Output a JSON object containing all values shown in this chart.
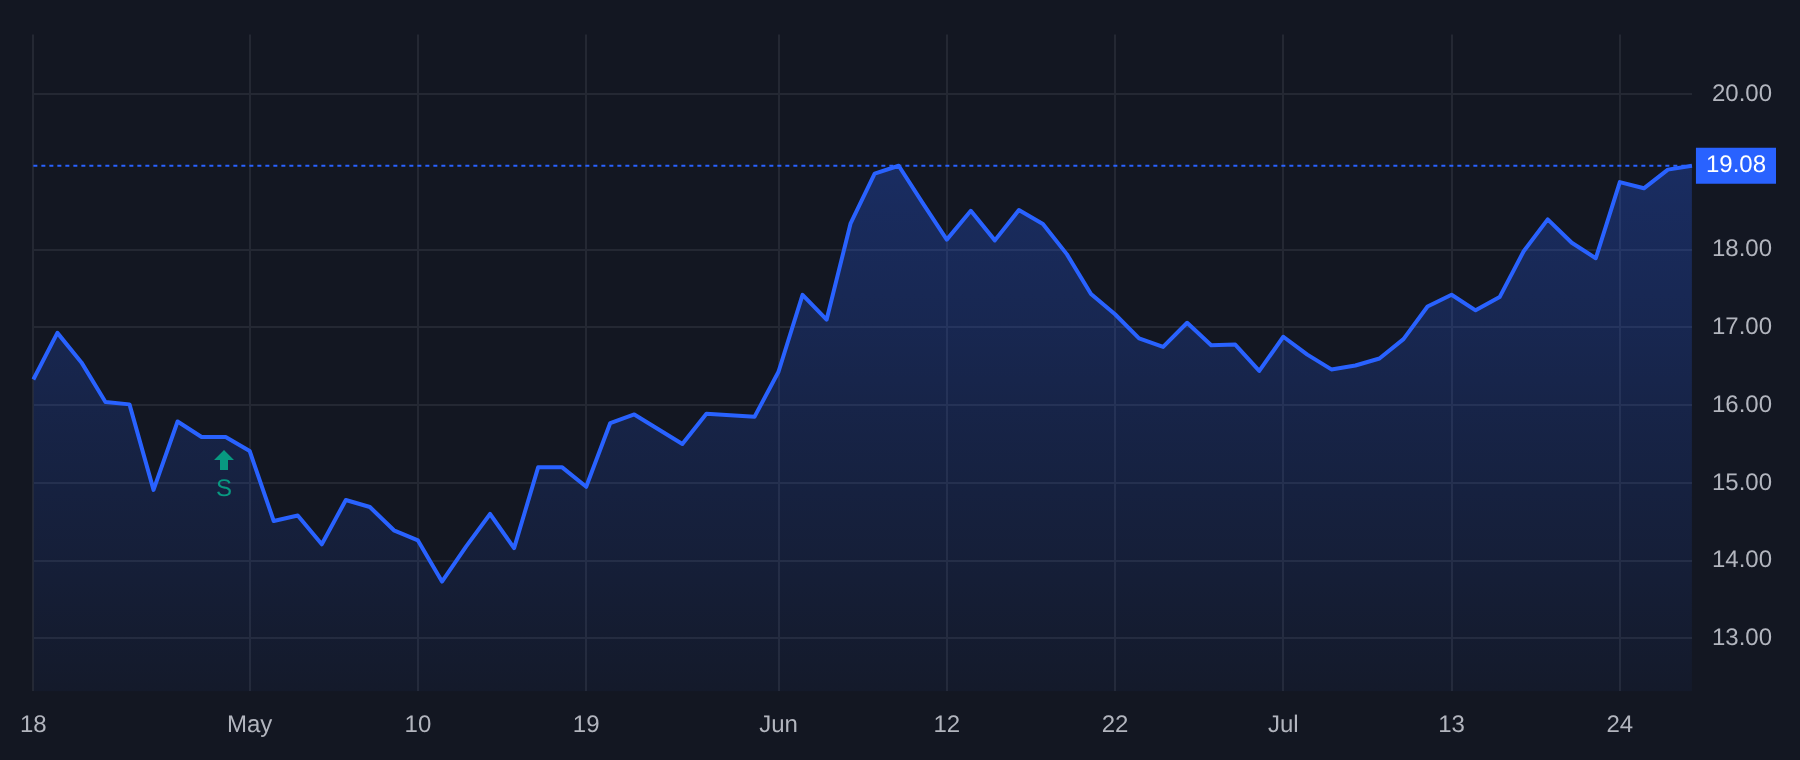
{
  "chart_data": {
    "type": "area",
    "color": "#2962ff",
    "marker": "none",
    "grid": true,
    "categories": [
      "18",
      null,
      null,
      null,
      null,
      null,
      null,
      null,
      null,
      "May",
      null,
      null,
      null,
      null,
      null,
      null,
      "10",
      null,
      null,
      null,
      null,
      null,
      null,
      "19",
      null,
      null,
      null,
      null,
      null,
      null,
      null,
      "Jun",
      null,
      null,
      null,
      null,
      null,
      null,
      "12",
      null,
      null,
      null,
      null,
      null,
      null,
      "22",
      null,
      null,
      null,
      null,
      null,
      null,
      "Jul",
      null,
      null,
      null,
      null,
      null,
      null,
      "13",
      null,
      null,
      null,
      null,
      null,
      null,
      "24",
      null,
      null,
      null
    ],
    "values": [
      16.33,
      16.93,
      16.55,
      16.04,
      16.01,
      14.91,
      15.79,
      15.59,
      15.59,
      15.41,
      14.51,
      14.58,
      14.21,
      14.78,
      14.69,
      14.39,
      14.26,
      13.73,
      14.18,
      14.6,
      14.16,
      15.2,
      15.2,
      14.95,
      15.77,
      15.88,
      15.69,
      15.5,
      15.89,
      15.87,
      15.85,
      16.43,
      17.42,
      17.1,
      18.34,
      18.98,
      19.08,
      18.6,
      18.13,
      18.5,
      18.12,
      18.51,
      18.33,
      17.94,
      17.43,
      17.17,
      16.86,
      16.75,
      17.06,
      16.77,
      16.78,
      16.44,
      16.88,
      16.65,
      16.46,
      16.51,
      16.6,
      16.85,
      17.27,
      17.42,
      17.22,
      17.39,
      17.98,
      18.39,
      18.09,
      17.89,
      18.87,
      18.79,
      19.03,
      19.08
    ],
    "ylim": [
      12.32,
      20.77
    ],
    "yticks": [
      {
        "value": 13,
        "label": "13.00"
      },
      {
        "value": 14,
        "label": "14.00"
      },
      {
        "value": 15,
        "label": "15.00"
      },
      {
        "value": 16,
        "label": "16.00"
      },
      {
        "value": 17,
        "label": "17.00"
      },
      {
        "value": 18,
        "label": "18.00"
      },
      {
        "value": 20,
        "label": "20.00"
      }
    ],
    "ref_lines": [
      {
        "axis": "y",
        "value": 19.08,
        "label": "19.08",
        "color": "#2962ff",
        "line_style": "dotted"
      }
    ],
    "annotations": [
      "S"
    ]
  }
}
